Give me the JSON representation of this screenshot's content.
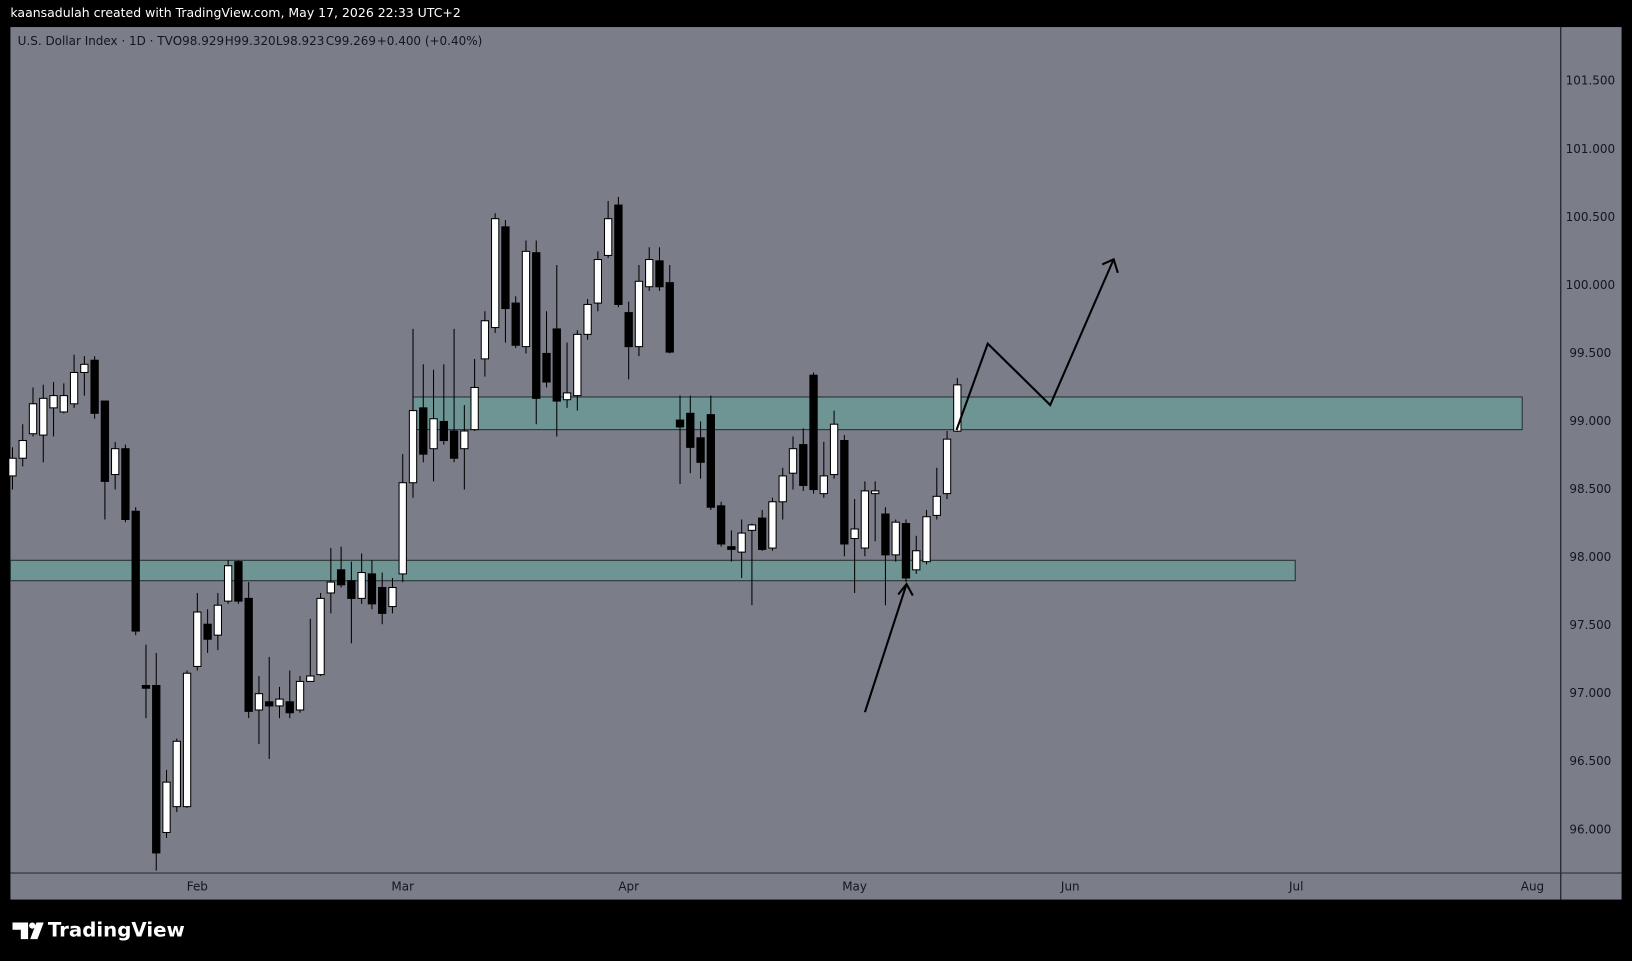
{
  "watermark": "kaansadulah created with TradingView.com, May 17, 2026 22:33 UTC+2",
  "footer": {
    "brand": "TradingView"
  },
  "chart_data": {
    "type": "candlestick",
    "title": "U.S. Dollar Index · 1D · TVC",
    "ohlc_labels": [
      "O98.929",
      "H99.320",
      "L98.923",
      "C99.269",
      "+0.400 (+0.40%)"
    ],
    "up_color": "#ffffff",
    "down_color": "#000000",
    "grid": false,
    "xlim": [
      -0.2,
      150.7
    ],
    "ylim": [
      95.686,
      101.898
    ],
    "xticks": [
      {
        "value": 18,
        "label": "Feb"
      },
      {
        "value": 38,
        "label": "Mar"
      },
      {
        "value": 60,
        "label": "Apr"
      },
      {
        "value": 82,
        "label": "May"
      },
      {
        "value": 103,
        "label": "Jun"
      },
      {
        "value": 125,
        "label": "Jul"
      },
      {
        "value": 148,
        "label": "Aug"
      }
    ],
    "yticks": [
      {
        "value": 96,
        "label": "96.000"
      },
      {
        "value": 96.5,
        "label": "96.500"
      },
      {
        "value": 97,
        "label": "97.000"
      },
      {
        "value": 97.5,
        "label": "97.500"
      },
      {
        "value": 98,
        "label": "98.000"
      },
      {
        "value": 98.5,
        "label": "98.500"
      },
      {
        "value": 99,
        "label": "99.000"
      },
      {
        "value": 99.5,
        "label": "99.500"
      },
      {
        "value": 100,
        "label": "100.000"
      },
      {
        "value": 100.5,
        "label": "100.500"
      },
      {
        "value": 101,
        "label": "101.000"
      },
      {
        "value": 101.5,
        "label": "101.500"
      }
    ],
    "zones": [
      {
        "top": 99.18,
        "bottom": 98.94,
        "start": 39,
        "end": 147,
        "color": "#6e9494"
      },
      {
        "top": 97.98,
        "bottom": 97.83,
        "start": -0.2,
        "end": 124.9,
        "color": "#6e9494"
      }
    ],
    "x": [
      0,
      1,
      2,
      3,
      4,
      5,
      6,
      7,
      8,
      9,
      10,
      11,
      12,
      13,
      14,
      15,
      16,
      17,
      18,
      19,
      20,
      21,
      22,
      23,
      24,
      25,
      26,
      27,
      28,
      29,
      30,
      31,
      32,
      33,
      34,
      35,
      36,
      37,
      38,
      39,
      40,
      41,
      42,
      43,
      44,
      45,
      46,
      47,
      48,
      49,
      50,
      51,
      52,
      53,
      54,
      55,
      56,
      57,
      58,
      59,
      60,
      61,
      62,
      63,
      64,
      65,
      66,
      67,
      68,
      69,
      70,
      71,
      72,
      73,
      74,
      75,
      76,
      77,
      78,
      79,
      80,
      81,
      82,
      83,
      84,
      85,
      86,
      87,
      88,
      89,
      90,
      91,
      92
    ],
    "open": [
      98.6,
      98.73,
      98.91,
      98.9,
      99.1,
      99.07,
      99.13,
      99.36,
      99.45,
      99.15,
      98.61,
      98.8,
      98.34,
      97.06,
      97.06,
      95.98,
      96.17,
      96.17,
      97.2,
      97.51,
      97.43,
      97.68,
      97.97,
      97.7,
      96.88,
      96.94,
      96.91,
      96.94,
      96.88,
      97.09,
      97.14,
      97.74,
      97.91,
      97.83,
      97.7,
      97.88,
      97.78,
      97.64,
      97.88,
      98.55,
      99.1,
      98.8,
      99.0,
      98.93,
      98.8,
      98.94,
      99.46,
      99.69,
      100.43,
      99.87,
      99.55,
      100.24,
      99.5,
      99.68,
      99.16,
      99.19,
      99.64,
      99.87,
      100.22,
      100.59,
      99.8,
      99.55,
      99.99,
      100.18,
      100.02,
      99.01,
      99.06,
      98.88,
      99.05,
      98.38,
      98.08,
      98.04,
      98.2,
      98.29,
      98.07,
      98.41,
      98.62,
      98.83,
      99.34,
      98.47,
      98.61,
      98.86,
      98.14,
      98.07,
      98.47,
      98.32,
      98.02,
      98.25,
      97.91,
      97.97,
      98.31,
      98.47,
      98.929
    ],
    "high": [
      98.81,
      98.98,
      99.25,
      99.27,
      99.29,
      99.28,
      99.49,
      99.48,
      99.48,
      99.15,
      98.85,
      98.83,
      98.37,
      97.36,
      97.3,
      96.44,
      96.67,
      97.17,
      97.74,
      97.62,
      97.74,
      97.98,
      97.98,
      97.82,
      97.13,
      97.27,
      97.05,
      97.17,
      97.13,
      97.55,
      97.74,
      98.07,
      98.08,
      97.97,
      98.03,
      97.98,
      97.89,
      97.85,
      98.76,
      99.68,
      99.42,
      99.38,
      99.42,
      99.68,
      99.12,
      99.46,
      99.81,
      100.53,
      100.48,
      99.92,
      100.33,
      100.33,
      99.81,
      100.15,
      99.58,
      99.67,
      99.9,
      100.25,
      100.62,
      100.65,
      99.88,
      100.15,
      100.28,
      100.28,
      100.15,
      99.19,
      99.19,
      99.0,
      99.19,
      98.41,
      98.2,
      98.28,
      98.25,
      98.35,
      98.44,
      98.66,
      98.89,
      98.95,
      99.36,
      98.85,
      99.08,
      98.9,
      98.43,
      98.56,
      98.56,
      98.37,
      98.28,
      98.28,
      98.16,
      98.35,
      98.66,
      98.93,
      99.32
    ],
    "low": [
      98.5,
      98.67,
      98.89,
      98.7,
      98.89,
      99.06,
      99.1,
      99.19,
      99.02,
      98.28,
      98.5,
      98.26,
      97.43,
      96.82,
      95.7,
      95.94,
      96.13,
      96.16,
      97.17,
      97.3,
      97.32,
      97.66,
      97.66,
      96.82,
      96.63,
      96.52,
      96.82,
      96.82,
      96.86,
      97.09,
      97.13,
      97.59,
      97.78,
      97.37,
      97.66,
      97.62,
      97.51,
      97.59,
      97.82,
      98.44,
      98.7,
      98.56,
      98.83,
      98.7,
      98.5,
      98.93,
      99.33,
      99.65,
      99.58,
      99.54,
      99.5,
      98.98,
      99.25,
      98.89,
      99.1,
      99.08,
      99.6,
      99.81,
      100.2,
      99.84,
      99.31,
      99.48,
      99.96,
      99.96,
      99.5,
      98.54,
      98.62,
      98.58,
      98.35,
      98.08,
      97.97,
      97.85,
      97.65,
      98.05,
      98.05,
      98.28,
      98.5,
      98.49,
      98.47,
      98.44,
      98.58,
      98.01,
      97.74,
      98.01,
      98.12,
      97.65,
      97.97,
      97.82,
      97.88,
      97.95,
      98.28,
      98.43,
      98.923
    ],
    "close": [
      98.73,
      98.86,
      99.13,
      99.17,
      99.19,
      99.19,
      99.36,
      99.42,
      99.06,
      98.56,
      98.8,
      98.28,
      97.46,
      97.04,
      95.83,
      96.35,
      96.65,
      97.15,
      97.6,
      97.4,
      97.65,
      97.94,
      97.68,
      96.87,
      97.0,
      96.91,
      96.96,
      96.86,
      97.09,
      97.13,
      97.7,
      97.82,
      97.8,
      97.7,
      97.89,
      97.66,
      97.59,
      97.78,
      98.55,
      99.08,
      98.76,
      99.02,
      98.86,
      98.73,
      98.93,
      99.25,
      99.74,
      100.49,
      99.83,
      99.56,
      100.25,
      99.17,
      99.29,
      99.15,
      99.21,
      99.64,
      99.86,
      100.19,
      100.49,
      99.86,
      99.55,
      100.03,
      100.19,
      99.99,
      99.51,
      98.96,
      98.81,
      98.7,
      98.37,
      98.1,
      98.06,
      98.18,
      98.24,
      98.06,
      98.41,
      98.6,
      98.8,
      98.53,
      98.5,
      98.6,
      98.98,
      98.1,
      98.21,
      98.49,
      98.49,
      98.02,
      98.26,
      97.85,
      98.05,
      98.3,
      98.45,
      98.87,
      99.269
    ]
  }
}
